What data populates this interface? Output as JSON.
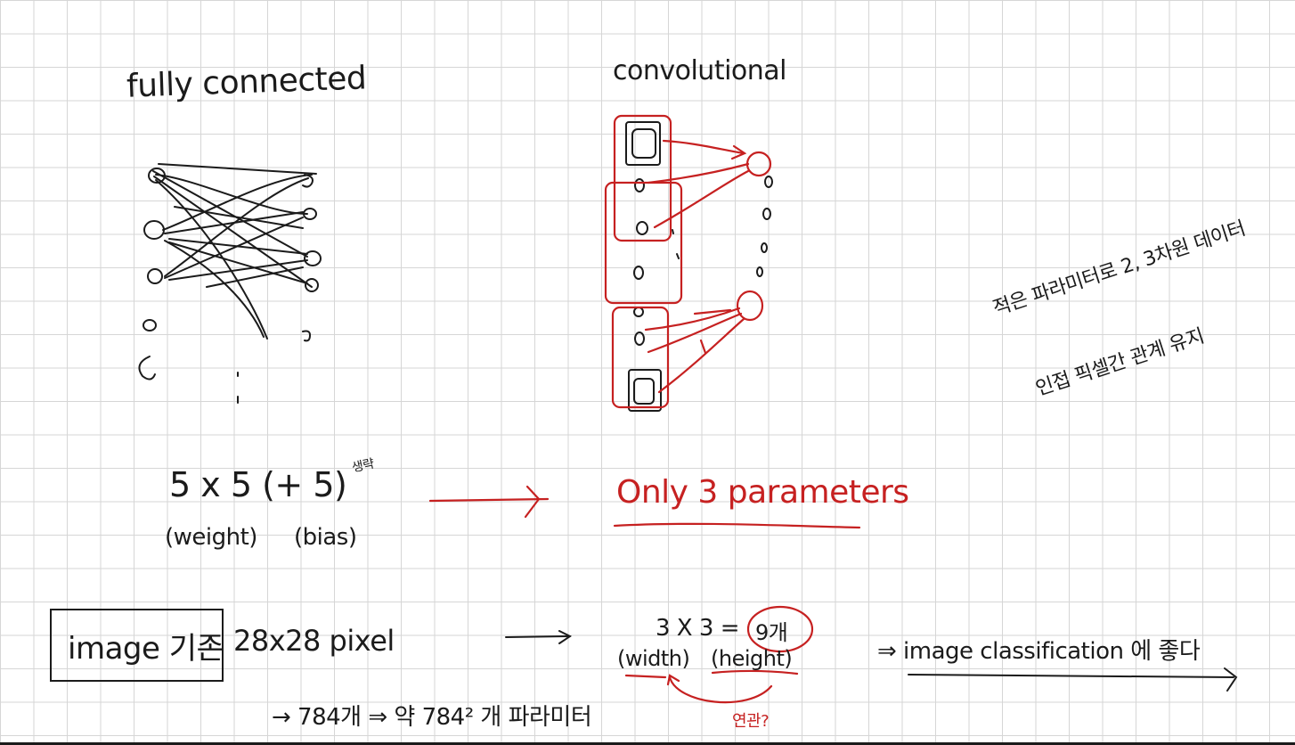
{
  "notes": {
    "fully_connected_title": "fully connected",
    "convolutional_title": "convolutional",
    "fc_params_expr": "5 x 5 (+ 5)",
    "fc_params_side_note": "생략",
    "weight_label": "(weight)",
    "bias_label": "(bias)",
    "only_params": "Only 3 parameters",
    "image_label": "image 기존",
    "pixel_size": "28x28 pixel",
    "kernel_expr": "3 X 3 =",
    "kernel_count": "9개",
    "width_label": "(width)",
    "height_label": "(height)",
    "classification_note": "⇒ image classification 에 좋다",
    "pixel_count_note": "→ 784개 ⇒ 약 784² 개 파라미터",
    "bottom_red_note": "연관?",
    "side_note_line1": "적은 파라미터로 2, 3차원 데이터",
    "side_note_line2": "인접 픽셀간 관계 유지"
  },
  "colors": {
    "ink": "#1b1b1b",
    "red": "#c62121",
    "grid": "#d6d6d6"
  }
}
